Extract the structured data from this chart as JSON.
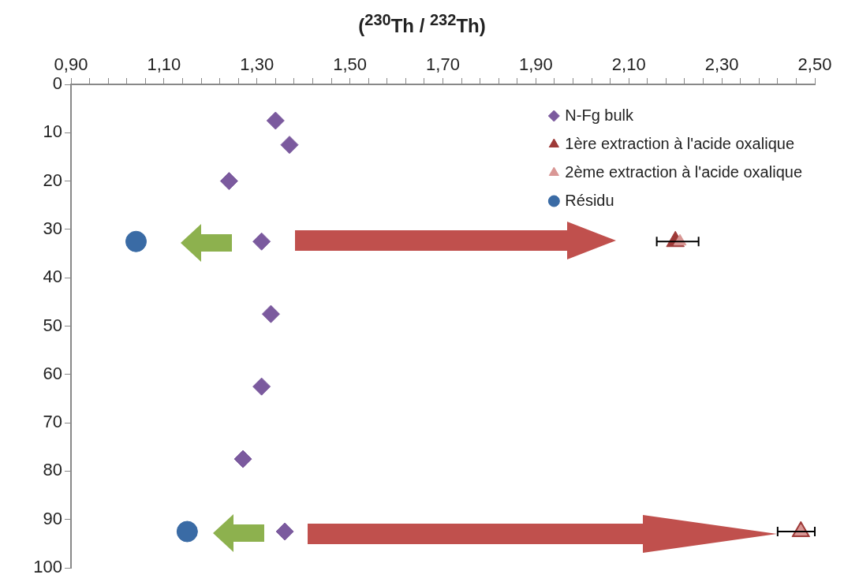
{
  "chart_data": {
    "type": "scatter",
    "xlabel": "($^{230}$Th / $^{232}$Th)",
    "xlim": [
      0.9,
      2.5
    ],
    "ylim": [
      100,
      0
    ],
    "xticks": [
      {
        "value": 0.9,
        "label": "0,90"
      },
      {
        "value": 0.94,
        "label": null
      },
      {
        "value": 0.98,
        "label": null
      },
      {
        "value": 1.02,
        "label": null
      },
      {
        "value": 1.06,
        "label": null
      },
      {
        "value": 1.1,
        "label": "1,10"
      },
      {
        "value": 1.14,
        "label": null
      },
      {
        "value": 1.18,
        "label": null
      },
      {
        "value": 1.22,
        "label": null
      },
      {
        "value": 1.26,
        "label": null
      },
      {
        "value": 1.3,
        "label": "1,30"
      },
      {
        "value": 1.34,
        "label": null
      },
      {
        "value": 1.38,
        "label": null
      },
      {
        "value": 1.42,
        "label": null
      },
      {
        "value": 1.46,
        "label": null
      },
      {
        "value": 1.5,
        "label": "1,50"
      },
      {
        "value": 1.54,
        "label": null
      },
      {
        "value": 1.58,
        "label": null
      },
      {
        "value": 1.62,
        "label": null
      },
      {
        "value": 1.66,
        "label": null
      },
      {
        "value": 1.7,
        "label": "1,70"
      },
      {
        "value": 1.74,
        "label": null
      },
      {
        "value": 1.78,
        "label": null
      },
      {
        "value": 1.82,
        "label": null
      },
      {
        "value": 1.86,
        "label": null
      },
      {
        "value": 1.9,
        "label": "1,90"
      },
      {
        "value": 1.94,
        "label": null
      },
      {
        "value": 1.98,
        "label": null
      },
      {
        "value": 2.02,
        "label": null
      },
      {
        "value": 2.06,
        "label": null
      },
      {
        "value": 2.1,
        "label": "2,10"
      },
      {
        "value": 2.14,
        "label": null
      },
      {
        "value": 2.18,
        "label": null
      },
      {
        "value": 2.22,
        "label": null
      },
      {
        "value": 2.26,
        "label": null
      },
      {
        "value": 2.3,
        "label": "2,30"
      },
      {
        "value": 2.34,
        "label": null
      },
      {
        "value": 2.38,
        "label": null
      },
      {
        "value": 2.42,
        "label": null
      },
      {
        "value": 2.46,
        "label": null
      },
      {
        "value": 2.5,
        "label": "2,50"
      }
    ],
    "yticks": [
      0,
      10,
      20,
      30,
      40,
      50,
      60,
      70,
      80,
      90,
      100
    ],
    "grid": false,
    "legend": "top right",
    "series": [
      {
        "name": "N-Fg bulk",
        "color": "#7b5a9e",
        "marker": "diamond",
        "x": [
          1.34,
          1.37,
          1.24,
          1.31,
          1.33,
          1.31,
          1.27,
          1.36
        ],
        "values": [
          7.5,
          12.5,
          20,
          32.5,
          47.5,
          62.5,
          77.5,
          92.5
        ]
      },
      {
        "name": "1ère extraction à l'acide oxalique",
        "color": "#9e3a38",
        "marker": "triangle",
        "x": [
          2.2,
          2.47
        ],
        "values": [
          32.5,
          92.5
        ]
      },
      {
        "name": "2ème extraction à l'acide oxalique",
        "color": "#d99795",
        "marker": "triangle",
        "x": [
          2.21,
          2.47
        ],
        "values": [
          32.5,
          92.5
        ],
        "xerrors": [
          [
            2.16,
            2.25
          ],
          [
            2.42,
            2.5
          ]
        ]
      },
      {
        "name": "Résidu",
        "color": "#3a6ba5",
        "marker": "circle",
        "x": [
          1.04,
          1.15
        ],
        "values": [
          32.5,
          92.5
        ]
      }
    ]
  }
}
